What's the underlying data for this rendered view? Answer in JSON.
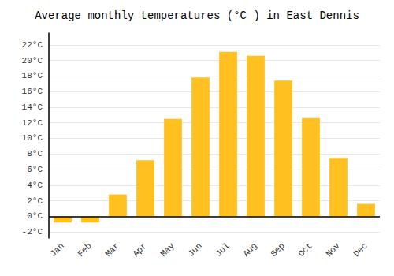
{
  "chart_data": {
    "type": "bar",
    "title": "Average monthly temperatures (°C ) in East Dennis",
    "categories": [
      "Jan",
      "Feb",
      "Mar",
      "Apr",
      "May",
      "Jun",
      "Jul",
      "Aug",
      "Sep",
      "Oct",
      "Nov",
      "Dec"
    ],
    "values": [
      -0.8,
      -0.8,
      2.8,
      7.2,
      12.5,
      17.8,
      21.1,
      20.6,
      17.4,
      12.6,
      7.5,
      1.6
    ],
    "color": "#FFC020",
    "ylim": [
      -2.8,
      23.5
    ],
    "yticks": [
      {
        "value": -2,
        "label": "-2°C"
      },
      {
        "value": 0,
        "label": "0°C"
      },
      {
        "value": 2,
        "label": "2°C"
      },
      {
        "value": 4,
        "label": "4°C"
      },
      {
        "value": 6,
        "label": "6°C"
      },
      {
        "value": 8,
        "label": "8°C"
      },
      {
        "value": 10,
        "label": "10°C"
      },
      {
        "value": 12,
        "label": "12°C"
      },
      {
        "value": 14,
        "label": "14°C"
      },
      {
        "value": 16,
        "label": "16°C"
      },
      {
        "value": 18,
        "label": "18°C"
      },
      {
        "value": 20,
        "label": "20°C"
      },
      {
        "value": 22,
        "label": "22°C"
      }
    ],
    "grid": true
  }
}
